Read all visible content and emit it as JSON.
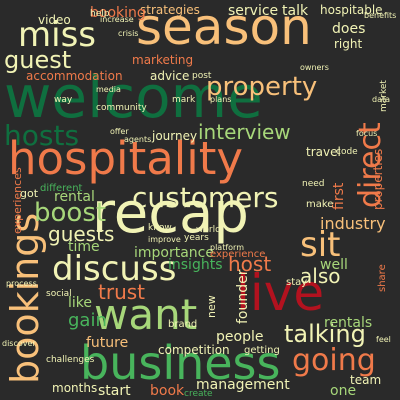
{
  "colors": {
    "background": "#2a2a2a",
    "dark_green": "#0f6f3f",
    "green": "#48b45c",
    "light_green": "#a7d77a",
    "cream": "#f1f3b5",
    "peach": "#f8c07a",
    "orange": "#f07a4a",
    "red": "#d7302b",
    "dark_red": "#b3121f"
  },
  "words": [
    "welcome",
    "season",
    "recap",
    "hospitality",
    "live",
    "business",
    "want",
    "bookings",
    "discuss",
    "miss",
    "hosts",
    "customers",
    "property",
    "guest",
    "direct",
    "going",
    "boost",
    "sit",
    "talking",
    "interview",
    "trust",
    "guests",
    "host",
    "also",
    "gain",
    "importance",
    "insights",
    "industry",
    "rental",
    "rentals",
    "founder",
    "management",
    "people",
    "talk",
    "strategies",
    "booking",
    "hospitable",
    "service",
    "marketing",
    "accommodation",
    "advice",
    "journey",
    "travel",
    "well",
    "properties",
    "first",
    "like",
    "time",
    "future",
    "book",
    "start",
    "months",
    "competition",
    "team",
    "one",
    "does",
    "right",
    "video",
    "stay",
    "make",
    "experiences",
    "experience",
    "got",
    "different",
    "create",
    "new",
    "brand",
    "post",
    "getting",
    "share",
    "challenges",
    "social",
    "world",
    "know",
    "years",
    "community",
    "mark",
    "help",
    "need",
    "increase",
    "crisis",
    "benefits",
    "owners",
    "offer",
    "plans",
    "improve",
    "data",
    "code",
    "focus",
    "platform",
    "agents",
    "media",
    "process",
    "discover",
    "feel",
    "market",
    "way"
  ]
}
